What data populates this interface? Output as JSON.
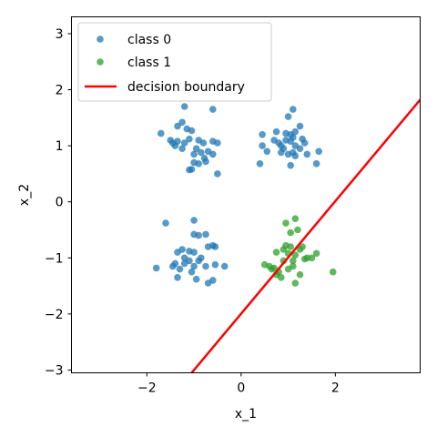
{
  "chart_data": {
    "type": "scatter",
    "title": "",
    "xlabel": "x_1",
    "ylabel": "x_2",
    "xlim": [
      -3.6,
      3.8
    ],
    "ylim": [
      -3.05,
      3.3
    ],
    "xticks": [
      -2,
      0,
      2
    ],
    "xtick_labels": [
      "−2",
      "0",
      "2"
    ],
    "yticks": [
      -3,
      -2,
      -1,
      0,
      1,
      2,
      3
    ],
    "ytick_labels": [
      "−3",
      "−2",
      "−1",
      "0",
      "1",
      "2",
      "3"
    ],
    "grid": false,
    "legend_position": "top-left",
    "series": [
      {
        "name": "class 0",
        "kind": "scatter",
        "color": "#1f77b4",
        "points": [
          [
            -1.2,
            1.7
          ],
          [
            -1.25,
            1.42
          ],
          [
            -1.35,
            1.35
          ],
          [
            -1.15,
            1.3
          ],
          [
            -1.05,
            1.27
          ],
          [
            -0.6,
            1.65
          ],
          [
            -1.7,
            1.22
          ],
          [
            -1.5,
            1.1
          ],
          [
            -1.35,
            1.08
          ],
          [
            -1.2,
            1.05
          ],
          [
            -1.4,
            1.0
          ],
          [
            -1.1,
            1.12
          ],
          [
            -0.9,
            1.1
          ],
          [
            -0.8,
            1.05
          ],
          [
            -0.6,
            1.08
          ],
          [
            -0.5,
            1.05
          ],
          [
            -0.95,
            0.95
          ],
          [
            -0.85,
            0.88
          ],
          [
            -0.7,
            0.9
          ],
          [
            -0.6,
            0.85
          ],
          [
            -1.0,
            0.7
          ],
          [
            -0.9,
            0.68
          ],
          [
            -1.05,
            0.58
          ],
          [
            -0.75,
            0.72
          ],
          [
            -1.1,
            0.57
          ],
          [
            -0.5,
            0.5
          ],
          [
            -1.25,
            0.95
          ],
          [
            -1.45,
            1.05
          ],
          [
            -1.0,
            0.85
          ],
          [
            -0.78,
            0.78
          ],
          [
            1.0,
            1.52
          ],
          [
            1.1,
            1.65
          ],
          [
            1.25,
            1.35
          ],
          [
            0.75,
            1.25
          ],
          [
            0.45,
            1.2
          ],
          [
            0.95,
            1.22
          ],
          [
            1.05,
            1.2
          ],
          [
            1.15,
            1.25
          ],
          [
            1.1,
            1.15
          ],
          [
            1.3,
            1.12
          ],
          [
            0.95,
            1.1
          ],
          [
            1.05,
            1.08
          ],
          [
            0.8,
            1.05
          ],
          [
            0.85,
            1.0
          ],
          [
            1.15,
            1.0
          ],
          [
            1.35,
            1.05
          ],
          [
            0.45,
            1.0
          ],
          [
            0.55,
            0.9
          ],
          [
            0.85,
            0.88
          ],
          [
            1.0,
            0.85
          ],
          [
            1.15,
            0.82
          ],
          [
            1.4,
            0.85
          ],
          [
            1.65,
            0.9
          ],
          [
            0.4,
            0.68
          ],
          [
            1.05,
            0.65
          ],
          [
            1.6,
            0.68
          ],
          [
            1.1,
            0.88
          ],
          [
            1.25,
            0.95
          ],
          [
            0.9,
            0.95
          ],
          [
            0.7,
            1.1
          ],
          [
            -1.6,
            -0.38
          ],
          [
            -1.0,
            -0.33
          ],
          [
            -1.0,
            -0.58
          ],
          [
            -0.9,
            -0.6
          ],
          [
            -0.75,
            -0.58
          ],
          [
            -0.6,
            -0.78
          ],
          [
            -0.7,
            -0.8
          ],
          [
            -0.55,
            -0.8
          ],
          [
            -1.25,
            -0.85
          ],
          [
            -1.35,
            -0.9
          ],
          [
            -1.1,
            -0.88
          ],
          [
            -1.0,
            -0.9
          ],
          [
            -0.85,
            -1.0
          ],
          [
            -1.2,
            -1.0
          ],
          [
            -1.1,
            -1.05
          ],
          [
            -1.4,
            -1.1
          ],
          [
            -1.3,
            -1.2
          ],
          [
            -1.0,
            -1.15
          ],
          [
            -0.75,
            -1.15
          ],
          [
            -0.55,
            -1.12
          ],
          [
            -1.45,
            -1.15
          ],
          [
            -0.35,
            -1.15
          ],
          [
            -1.8,
            -1.18
          ],
          [
            -1.05,
            -1.25
          ],
          [
            -1.35,
            -1.35
          ],
          [
            -0.95,
            -1.38
          ],
          [
            -0.7,
            -1.45
          ],
          [
            -0.6,
            -1.4
          ],
          [
            -1.2,
            -1.1
          ],
          [
            -0.9,
            -1.05
          ]
        ]
      },
      {
        "name": "class 1",
        "kind": "scatter",
        "color": "#2ca02c",
        "points": [
          [
            1.15,
            -0.3
          ],
          [
            0.95,
            -0.38
          ],
          [
            1.05,
            -0.55
          ],
          [
            1.2,
            -0.5
          ],
          [
            0.95,
            -0.78
          ],
          [
            1.05,
            -0.8
          ],
          [
            0.9,
            -0.85
          ],
          [
            1.25,
            -0.85
          ],
          [
            1.3,
            -0.8
          ],
          [
            0.75,
            -0.9
          ],
          [
            1.0,
            -0.92
          ],
          [
            1.15,
            -0.95
          ],
          [
            1.4,
            -1.0
          ],
          [
            1.5,
            -1.0
          ],
          [
            1.6,
            -0.92
          ],
          [
            1.35,
            -1.02
          ],
          [
            0.9,
            -1.05
          ],
          [
            1.1,
            -1.05
          ],
          [
            0.5,
            -1.12
          ],
          [
            0.6,
            -1.15
          ],
          [
            0.65,
            -1.2
          ],
          [
            1.1,
            -1.15
          ],
          [
            0.8,
            -1.25
          ],
          [
            0.75,
            -1.3
          ],
          [
            1.25,
            -1.3
          ],
          [
            0.85,
            -1.35
          ],
          [
            1.95,
            -1.25
          ],
          [
            1.15,
            -1.45
          ],
          [
            1.0,
            -1.2
          ],
          [
            0.7,
            -1.18
          ]
        ]
      },
      {
        "name": "decision boundary",
        "kind": "line",
        "color": "#ff0000",
        "points": [
          [
            -1.05,
            -3.05
          ],
          [
            3.8,
            1.82
          ]
        ]
      }
    ]
  }
}
